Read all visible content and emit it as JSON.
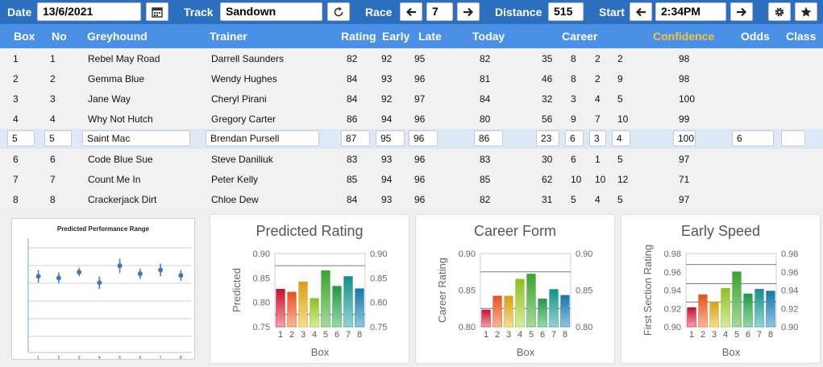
{
  "topbar": {
    "date_label": "Date",
    "date_value": "13/6/2021",
    "calendar_icon": "calendar-icon",
    "track_label": "Track",
    "track_value": "Sandown",
    "refresh_icon": "refresh-icon",
    "race_label": "Race",
    "race_prev_icon": "arrow-left-icon",
    "race_value": "7",
    "race_next_icon": "arrow-right-icon",
    "distance_label": "Distance",
    "distance_value": "515",
    "start_label": "Start",
    "start_prev_icon": "arrow-left-icon",
    "start_value": "2:34PM",
    "start_next_icon": "arrow-right-icon",
    "settings_icon": "gear-icon",
    "favourite_icon": "star-icon"
  },
  "columns": {
    "box": "Box",
    "no": "No",
    "greyhound": "Greyhound",
    "trainer": "Trainer",
    "rating": "Rating",
    "early": "Early",
    "late": "Late",
    "today": "Today",
    "career": "Career",
    "confidence": "Confidence",
    "odds": "Odds",
    "class": "Class"
  },
  "accent_colors": {
    "topbar": "#2d6fbf",
    "header": "#4990e6",
    "confidence": "#f5c53a",
    "selected_row": "#dde9f7"
  },
  "rows": [
    {
      "box": "1",
      "no": "1",
      "greyhound": "Rebel May Road",
      "trainer": "Darrell Saunders",
      "rating": "82",
      "early": "92",
      "late": "95",
      "today": "82",
      "c1": "35",
      "c2": "8",
      "c3": "2",
      "c4": "2",
      "confidence": "98",
      "odds": "",
      "class": ""
    },
    {
      "box": "2",
      "no": "2",
      "greyhound": "Gemma Blue",
      "trainer": "Wendy Hughes",
      "rating": "84",
      "early": "93",
      "late": "96",
      "today": "81",
      "c1": "46",
      "c2": "8",
      "c3": "2",
      "c4": "9",
      "confidence": "98",
      "odds": "",
      "class": ""
    },
    {
      "box": "3",
      "no": "3",
      "greyhound": "Jane Way",
      "trainer": "Cheryl Pirani",
      "rating": "84",
      "early": "92",
      "late": "97",
      "today": "84",
      "c1": "32",
      "c2": "3",
      "c3": "4",
      "c4": "5",
      "confidence": "100",
      "odds": "",
      "class": ""
    },
    {
      "box": "4",
      "no": "4",
      "greyhound": "Why Not Hutch",
      "trainer": "Gregory Carter",
      "rating": "86",
      "early": "94",
      "late": "96",
      "today": "80",
      "c1": "56",
      "c2": "9",
      "c3": "7",
      "c4": "10",
      "confidence": "99",
      "odds": "",
      "class": ""
    },
    {
      "box": "5",
      "no": "5",
      "greyhound": "Saint Mac",
      "trainer": "Brendan Pursell",
      "rating": "87",
      "early": "95",
      "late": "96",
      "today": "86",
      "c1": "23",
      "c2": "6",
      "c3": "3",
      "c4": "4",
      "confidence": "100",
      "odds": "6",
      "class": "",
      "selected": true
    },
    {
      "box": "6",
      "no": "6",
      "greyhound": "Code Blue Sue",
      "trainer": "Steve Daniliuk",
      "rating": "83",
      "early": "93",
      "late": "96",
      "today": "83",
      "c1": "30",
      "c2": "6",
      "c3": "1",
      "c4": "5",
      "confidence": "97",
      "odds": "",
      "class": ""
    },
    {
      "box": "7",
      "no": "7",
      "greyhound": "Count Me In",
      "trainer": "Peter Kelly",
      "rating": "85",
      "early": "94",
      "late": "96",
      "today": "85",
      "c1": "62",
      "c2": "10",
      "c3": "10",
      "c4": "12",
      "confidence": "71",
      "odds": "",
      "class": ""
    },
    {
      "box": "8",
      "no": "8",
      "greyhound": "Crackerjack Dirt",
      "trainer": "Chloe Dew",
      "rating": "84",
      "early": "93",
      "late": "96",
      "today": "82",
      "c1": "31",
      "c2": "5",
      "c3": "4",
      "c4": "5",
      "confidence": "97",
      "odds": "",
      "class": ""
    }
  ],
  "chart_data": [
    {
      "type": "scatter",
      "title": "Predicted Performance Range",
      "x": [
        1,
        2,
        3,
        4,
        5,
        6,
        7,
        8
      ],
      "categories": [
        "1",
        "2",
        "3",
        "4",
        "5",
        "6",
        "7",
        "8"
      ],
      "y": [
        0.83,
        0.826,
        0.84,
        0.815,
        0.855,
        0.836,
        0.845,
        0.832
      ],
      "err": [
        0.015,
        0.013,
        0.01,
        0.015,
        0.017,
        0.012,
        0.015,
        0.013
      ],
      "ylim": [
        0.65,
        0.92
      ],
      "xlabel": "",
      "ylabel": "",
      "grid": true
    },
    {
      "type": "bar",
      "title": "Predicted Rating",
      "categories": [
        "1",
        "2",
        "3",
        "4",
        "5",
        "6",
        "7",
        "8"
      ],
      "values": [
        0.827,
        0.821,
        0.842,
        0.808,
        0.865,
        0.833,
        0.853,
        0.828
      ],
      "ylim": [
        0.75,
        0.9
      ],
      "yticks": [
        "0.75",
        "0.80",
        "0.85",
        "0.90"
      ],
      "reflines": [
        0.875,
        0.775
      ],
      "xlabel": "Box",
      "ylabel": "Predicted",
      "secondary_y": true
    },
    {
      "type": "bar",
      "title": "Career Form",
      "categories": [
        "1",
        "2",
        "3",
        "4",
        "5",
        "6",
        "7",
        "8"
      ],
      "values": [
        0.823,
        0.842,
        0.842,
        0.865,
        0.872,
        0.838,
        0.851,
        0.843
      ],
      "ylim": [
        0.8,
        0.9
      ],
      "yticks": [
        "0.80",
        "0.85",
        "0.90"
      ],
      "reflines": [
        0.875,
        0.825
      ],
      "xlabel": "Box",
      "ylabel": "Career Rating",
      "secondary_y": true
    },
    {
      "type": "bar",
      "title": "Early Speed",
      "categories": [
        "1",
        "2",
        "3",
        "4",
        "5",
        "6",
        "7",
        "8"
      ],
      "values": [
        0.921,
        0.935,
        0.927,
        0.942,
        0.96,
        0.936,
        0.941,
        0.939
      ],
      "ylim": [
        0.9,
        0.98
      ],
      "yticks": [
        "0.90",
        "0.92",
        "0.94",
        "0.96",
        "0.98"
      ],
      "reflines": [
        0.968,
        0.947,
        0.927
      ],
      "xlabel": "Box",
      "ylabel": "First Section Rating",
      "secondary_y": true
    }
  ]
}
